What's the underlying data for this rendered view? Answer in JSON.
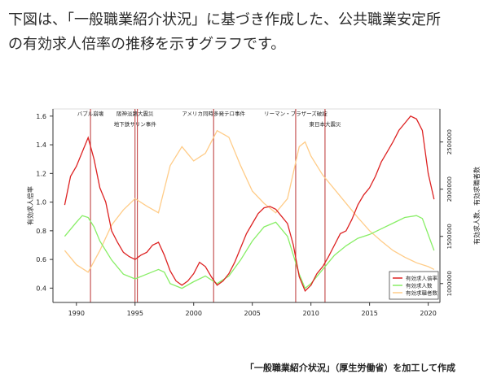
{
  "intro": {
    "line1": "下図は、「一般職業紹介状況」に基づき作成した、公共職業安定所",
    "line2": "の有効求人倍率の推移を示すグラフです。"
  },
  "source_note": "「一般職業紹介状況」（厚生労働省）を加工して作成",
  "colors": {
    "ratio": "#dd2222",
    "openings": "#88ee66",
    "applicants": "#ffcc88",
    "event_line": "#bb3333"
  },
  "chart_data": {
    "type": "line",
    "title": "",
    "xlabel": "",
    "ylabel_left": "有効求人倍率",
    "ylabel_right": "有効求人数、有効求職者数",
    "xlim": [
      1988,
      2021
    ],
    "ylim_left": [
      0.3,
      1.65
    ],
    "ylim_right": [
      800000,
      2850000
    ],
    "x_ticks": [
      "1990",
      "1995",
      "2000",
      "2005",
      "2010",
      "2015",
      "2020"
    ],
    "y_ticks_left": [
      "0.4",
      "0.6",
      "0.8",
      "1.0",
      "1.2",
      "1.4",
      "1.6"
    ],
    "y_ticks_right": [
      "1000000",
      "1500000",
      "2000000",
      "2500000"
    ],
    "grid": false,
    "legend_position": "bottom-right",
    "series": [
      {
        "name": "有効求人倍率",
        "axis": "left",
        "color": "#dd2222",
        "x": [
          1989.0,
          1989.5,
          1990.0,
          1990.5,
          1991.0,
          1991.5,
          1992.0,
          1992.5,
          1993.0,
          1993.5,
          1994.0,
          1994.5,
          1995.0,
          1995.5,
          1996.0,
          1996.5,
          1997.0,
          1997.5,
          1998.0,
          1998.5,
          1999.0,
          1999.5,
          2000.0,
          2000.5,
          2001.0,
          2001.5,
          2002.0,
          2002.5,
          2003.0,
          2003.5,
          2004.0,
          2004.5,
          2005.0,
          2005.5,
          2006.0,
          2006.5,
          2007.0,
          2007.5,
          2008.0,
          2008.5,
          2009.0,
          2009.5,
          2010.0,
          2010.5,
          2011.0,
          2011.5,
          2012.0,
          2012.5,
          2013.0,
          2013.5,
          2014.0,
          2014.5,
          2015.0,
          2015.5,
          2016.0,
          2016.5,
          2017.0,
          2017.5,
          2018.0,
          2018.5,
          2019.0,
          2019.5,
          2020.0,
          2020.5
        ],
        "y": [
          0.98,
          1.18,
          1.25,
          1.35,
          1.45,
          1.3,
          1.1,
          1.0,
          0.8,
          0.72,
          0.65,
          0.62,
          0.6,
          0.63,
          0.65,
          0.7,
          0.72,
          0.63,
          0.52,
          0.45,
          0.42,
          0.45,
          0.5,
          0.58,
          0.55,
          0.48,
          0.42,
          0.45,
          0.5,
          0.58,
          0.68,
          0.78,
          0.85,
          0.92,
          0.96,
          0.97,
          0.95,
          0.9,
          0.85,
          0.7,
          0.48,
          0.38,
          0.42,
          0.5,
          0.55,
          0.62,
          0.7,
          0.78,
          0.8,
          0.88,
          0.98,
          1.05,
          1.1,
          1.18,
          1.28,
          1.35,
          1.42,
          1.5,
          1.55,
          1.6,
          1.58,
          1.5,
          1.2,
          1.02
        ]
      },
      {
        "name": "有効求人数",
        "axis": "right",
        "color": "#88ee66",
        "x": [
          1989.0,
          1990.0,
          1990.5,
          1991.0,
          1991.5,
          1992.0,
          1993.0,
          1994.0,
          1995.0,
          1996.0,
          1997.0,
          1997.5,
          1998.0,
          1999.0,
          2000.0,
          2001.0,
          2002.0,
          2003.0,
          2004.0,
          2005.0,
          2006.0,
          2007.0,
          2008.0,
          2009.0,
          2009.5,
          2010.0,
          2011.0,
          2012.0,
          2013.0,
          2014.0,
          2015.0,
          2016.0,
          2017.0,
          2018.0,
          2019.0,
          2019.5,
          2020.0,
          2020.5
        ],
        "y": [
          1500000,
          1650000,
          1720000,
          1700000,
          1600000,
          1450000,
          1250000,
          1100000,
          1050000,
          1100000,
          1150000,
          1120000,
          1000000,
          950000,
          1020000,
          1080000,
          1000000,
          1080000,
          1250000,
          1450000,
          1600000,
          1650000,
          1500000,
          1100000,
          950000,
          1000000,
          1150000,
          1300000,
          1400000,
          1480000,
          1520000,
          1580000,
          1640000,
          1700000,
          1720000,
          1690000,
          1520000,
          1350000
        ]
      },
      {
        "name": "有効求職者数",
        "axis": "right",
        "color": "#ffcc88",
        "x": [
          1989.0,
          1990.0,
          1991.0,
          1992.0,
          1993.0,
          1994.0,
          1995.0,
          1996.0,
          1997.0,
          1998.0,
          1999.0,
          2000.0,
          2001.0,
          2002.0,
          2003.0,
          2004.0,
          2005.0,
          2006.0,
          2007.0,
          2008.0,
          2009.0,
          2009.5,
          2010.0,
          2011.0,
          2012.0,
          2013.0,
          2014.0,
          2015.0,
          2016.0,
          2017.0,
          2018.0,
          2019.0,
          2020.0,
          2020.5
        ],
        "y": [
          1350000,
          1200000,
          1120000,
          1350000,
          1620000,
          1780000,
          1900000,
          1820000,
          1750000,
          2250000,
          2450000,
          2300000,
          2380000,
          2620000,
          2550000,
          2250000,
          1980000,
          1850000,
          1750000,
          1900000,
          2450000,
          2500000,
          2350000,
          2150000,
          2000000,
          1850000,
          1700000,
          1560000,
          1450000,
          1350000,
          1280000,
          1220000,
          1180000,
          1150000
        ]
      }
    ],
    "events": [
      {
        "label": "バブル崩壊",
        "x": 1991.2
      },
      {
        "label": "阪神淡路大震災",
        "x": 1995.0
      },
      {
        "label": "地下鉄サリン事件",
        "x": 1995.2
      },
      {
        "label": "アメリカ同時多発テロ事件",
        "x": 2001.7
      },
      {
        "label": "リーマン・ブラザーズ破綻",
        "x": 2008.7
      },
      {
        "label": "東日本大震災",
        "x": 2011.2
      }
    ]
  }
}
